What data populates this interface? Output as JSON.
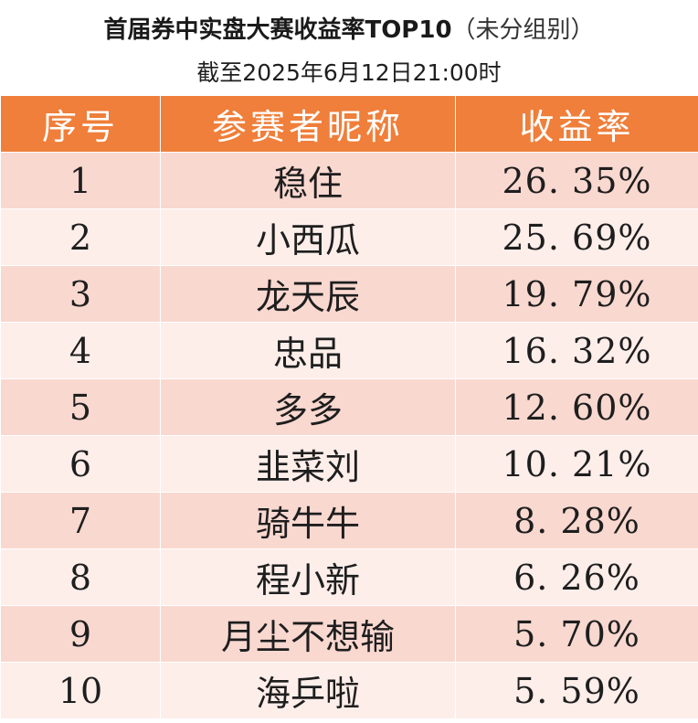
{
  "title": {
    "main": "首届券中实盘大赛收益率TOP10",
    "suffix": "（未分组别）"
  },
  "subtitle": "截至2025年6月12日21:00时",
  "table": {
    "headers": [
      "序号",
      "参赛者昵称",
      "收益率"
    ],
    "rows": [
      {
        "rank": "1",
        "name": "稳住",
        "rate": "26. 35%"
      },
      {
        "rank": "2",
        "name": "小西瓜",
        "rate": "25. 69%"
      },
      {
        "rank": "3",
        "name": "龙天辰",
        "rate": "19. 79%"
      },
      {
        "rank": "4",
        "name": "忠品",
        "rate": "16. 32%"
      },
      {
        "rank": "5",
        "name": "多多",
        "rate": "12. 60%"
      },
      {
        "rank": "6",
        "name": "韭菜刘",
        "rate": "10. 21%"
      },
      {
        "rank": "7",
        "name": "骑牛牛",
        "rate": "8. 28%"
      },
      {
        "rank": "8",
        "name": "程小新",
        "rate": "6. 26%"
      },
      {
        "rank": "9",
        "name": "月尘不想输",
        "rate": "5. 70%"
      },
      {
        "rank": "10",
        "name": "海乒啦",
        "rate": "5. 59%"
      }
    ]
  },
  "colors": {
    "header_bg": "#ef7f3a",
    "row_odd": "#f9d8d0",
    "row_even": "#fdeeea"
  }
}
